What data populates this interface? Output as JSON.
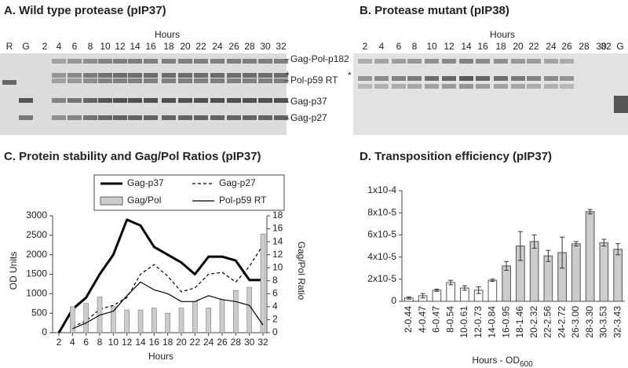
{
  "panel_a": {
    "title": "A.  Wild type protease (pIP37)",
    "axis_label": "Hours",
    "lanes": [
      "R",
      "G",
      "2",
      "4",
      "6",
      "8",
      "10",
      "12",
      "14",
      "16",
      "18",
      "20",
      "22",
      "24",
      "26",
      "28",
      "30",
      "32"
    ],
    "band_labels": [
      "Gag-Pol-p182",
      "Pol-p59 RT",
      "Gag-p37",
      "Gag-p27"
    ],
    "marker": "*"
  },
  "panel_b": {
    "title": "B.  Protease mutant (pIP38)",
    "axis_label": "Hours",
    "lanes": [
      "2",
      "4",
      "6",
      "8",
      "10",
      "12",
      "14",
      "16",
      "18",
      "20",
      "22",
      "24",
      "26",
      "28",
      "30",
      "32",
      "G"
    ],
    "marker": "*"
  },
  "chart_data": [
    {
      "type": "line",
      "title": "C.  Protein stability and Gag/Pol Ratios (pIP37)",
      "x_label": "Hours",
      "y_label": "OD Units",
      "y2_label": "Gag/Pol Ratio",
      "x": [
        2,
        4,
        6,
        8,
        10,
        12,
        14,
        16,
        18,
        20,
        22,
        24,
        26,
        28,
        30,
        32
      ],
      "xlim": [
        2,
        32
      ],
      "xticks": [
        2,
        4,
        6,
        8,
        10,
        12,
        14,
        16,
        18,
        20,
        22,
        24,
        26,
        28,
        30,
        32
      ],
      "ylim": [
        0,
        3000
      ],
      "yticks": [
        0,
        500,
        1000,
        1500,
        2000,
        2500,
        3000
      ],
      "y2lim": [
        0,
        18
      ],
      "y2ticks": [
        0,
        2,
        4,
        6,
        8,
        10,
        12,
        14,
        16,
        18
      ],
      "series": [
        {
          "name": "Gag-p37",
          "color": "#000000",
          "style": "thick",
          "values": [
            0,
            600,
            900,
            1500,
            2000,
            2900,
            2750,
            2200,
            2000,
            1800,
            1500,
            1950,
            1950,
            1850,
            1350,
            1350
          ]
        },
        {
          "name": "Gag-p27",
          "color": "#000000",
          "style": "dashed",
          "values": [
            null,
            150,
            300,
            600,
            700,
            900,
            1500,
            1750,
            1450,
            1050,
            1150,
            1500,
            1550,
            1300,
            1700,
            2250
          ]
        },
        {
          "name": "Gag/Pol",
          "color": "#cccccc",
          "style": "bar",
          "axis": "y2",
          "values": [
            null,
            4,
            4.5,
            5.5,
            4,
            3.5,
            3.5,
            3.8,
            3,
            3.8,
            4.8,
            3.8,
            5.1,
            6.5,
            7,
            15.2
          ]
        },
        {
          "name": "Pol-p59 RT",
          "color": "#000000",
          "style": "thin",
          "values": [
            null,
            100,
            250,
            450,
            550,
            950,
            1300,
            1100,
            1000,
            800,
            800,
            950,
            850,
            800,
            700,
            200
          ]
        }
      ]
    },
    {
      "type": "bar",
      "title": "D.  Transposition efficiency (pIP37)",
      "x_label": "Hours - OD",
      "x_label_sub": "600",
      "categories": [
        "2-0.44",
        "4-0.47",
        "6-0.47",
        "8-0.54",
        "10-0.61",
        "12-0.73",
        "14-0.84",
        "16-0.95",
        "18-1.46",
        "20-2.32",
        "22-2.56",
        "24-2.72",
        "26-3.00",
        "28-3.30",
        "30-3.53",
        "32-3.43"
      ],
      "values": [
        3e-06,
        5e-06,
        1e-05,
        1.7e-05,
        1.2e-05,
        1e-05,
        1.9e-05,
        3.2e-05,
        5e-05,
        5.4e-05,
        4.1e-05,
        4.4e-05,
        5.2e-05,
        8.1e-05,
        5.3e-05,
        4.7e-05
      ],
      "errors": [
        1e-06,
        2e-06,
        1e-06,
        2e-06,
        2e-06,
        3e-06,
        1e-06,
        4e-06,
        1.3e-05,
        6e-06,
        5e-06,
        1.4e-05,
        2e-06,
        2e-06,
        3e-06,
        5e-06
      ],
      "colors": [
        "#ffffff",
        "#ffffff",
        "#ffffff",
        "#ffffff",
        "#ffffff",
        "#ffffff",
        "#ffffff",
        "#cccccc",
        "#cccccc",
        "#cccccc",
        "#cccccc",
        "#cccccc",
        "#cccccc",
        "#cccccc",
        "#cccccc",
        "#cccccc"
      ],
      "ylim": [
        0,
        0.0001
      ],
      "yticks": [
        0,
        {
          "value": 2e-05,
          "label": "2x10-5"
        },
        {
          "value": 4e-05,
          "label": "4x10-5"
        },
        {
          "value": 6e-05,
          "label": "6x10-5"
        },
        {
          "value": 8e-05,
          "label": "8x10-5"
        },
        {
          "value": 0.0001,
          "label": "1x10-4"
        }
      ]
    }
  ]
}
